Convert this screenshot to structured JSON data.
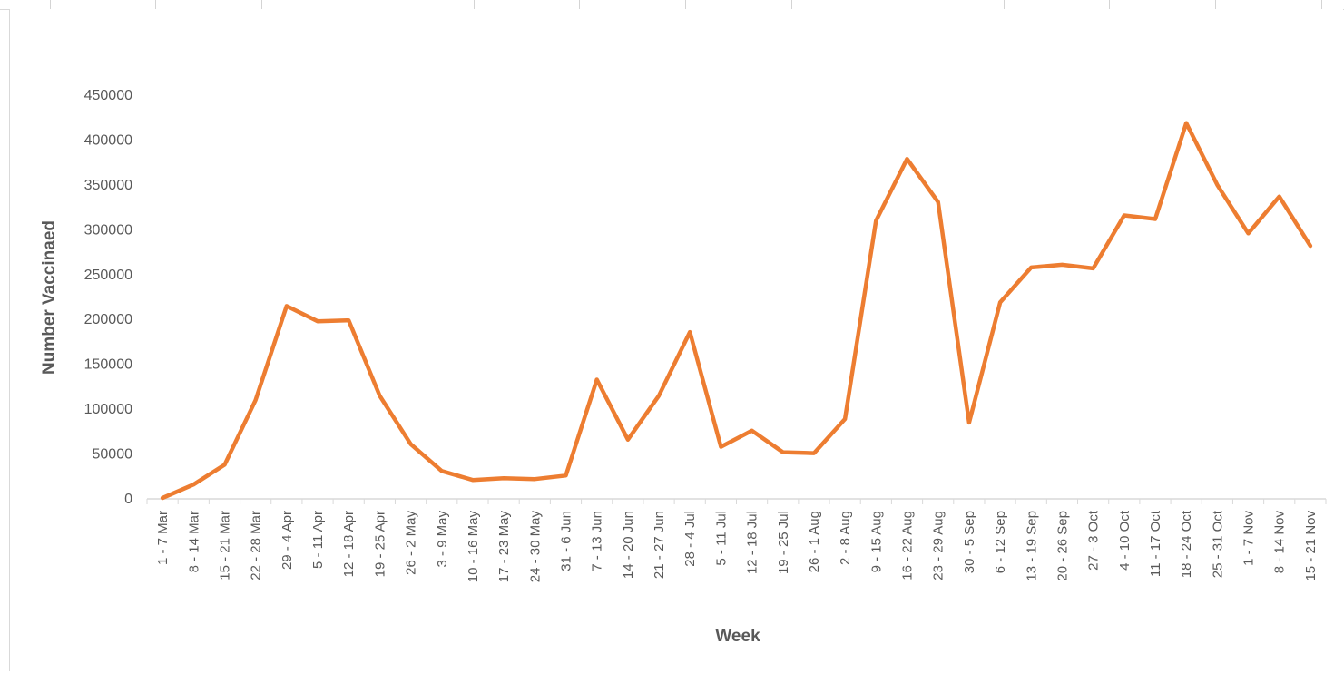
{
  "chart_data": {
    "type": "line",
    "xlabel": "Week",
    "ylabel": "Number Vaccinaed",
    "ylim": [
      0,
      450000
    ],
    "yticks": [
      0,
      50000,
      100000,
      150000,
      200000,
      250000,
      300000,
      350000,
      400000,
      450000
    ],
    "ytick_labels": [
      "0",
      "50000",
      "100000",
      "150000",
      "200000",
      "250000",
      "300000",
      "350000",
      "400000",
      "450000"
    ],
    "grid": false,
    "legend": "none",
    "line_color": "#ED7D31",
    "categories": [
      "1 - 7 Mar",
      "8 - 14 Mar",
      "15 - 21 Mar",
      "22 - 28 Mar",
      "29 - 4 Apr",
      "5 - 11 Apr",
      "12 - 18 Apr",
      "19 - 25 Apr",
      "26 - 2 May",
      "3 - 9 May",
      "10 - 16 May",
      "17 - 23 May",
      "24 - 30 May",
      "31 - 6 Jun",
      "7 - 13 Jun",
      "14 - 20 Jun",
      "21 - 27 Jun",
      "28 - 4 Jul",
      "5 - 11 Jul",
      "12 - 18 Jul",
      "19 - 25 Jul",
      "26 - 1 Aug",
      "2 - 8 Aug",
      "9 - 15 Aug",
      "16 - 22 Aug",
      "23 - 29 Aug",
      "30 - 5 Sep",
      "6 - 12 Sep",
      "13 - 19 Sep",
      "20 - 26 Sep",
      "27 - 3 Oct",
      "4 - 10 Oct",
      "11 - 17 Oct",
      "18 - 24 Oct",
      "25 - 31 Oct",
      "1 - 7 Nov",
      "8 - 14 Nov",
      "15 - 21 Nov"
    ],
    "values": [
      1000,
      16000,
      38000,
      110000,
      215000,
      198000,
      199000,
      115000,
      61000,
      31000,
      21000,
      23000,
      22000,
      26000,
      133000,
      66000,
      115000,
      186000,
      58000,
      76000,
      52000,
      51000,
      89000,
      310000,
      379000,
      331000,
      85000,
      219000,
      258000,
      261000,
      257000,
      316000,
      312000,
      419000,
      350000,
      296000,
      337000,
      282000
    ]
  }
}
